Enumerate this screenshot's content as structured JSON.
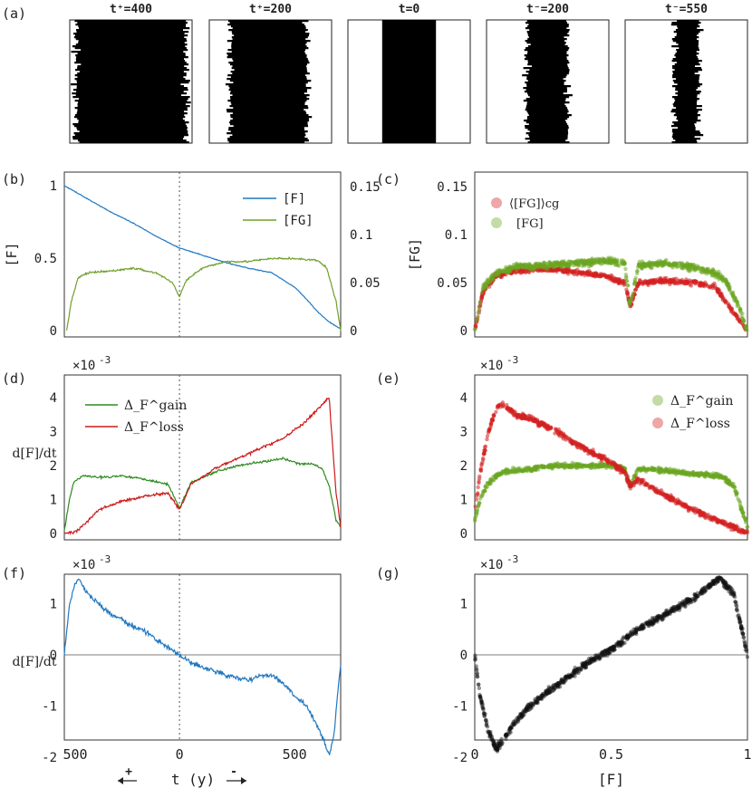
{
  "panel_labels": {
    "a": "(a)",
    "b": "(b)",
    "c": "(c)",
    "d": "(d)",
    "e": "(e)",
    "f": "(f)",
    "g": "(g)"
  },
  "snapshots": [
    {
      "title": "t⁺=400",
      "front_start": 0.05,
      "front_end": 0.95
    },
    {
      "title": "t⁺=200",
      "front_start": 0.17,
      "front_end": 0.8
    },
    {
      "title": "t=0",
      "front_start": 0.28,
      "front_end": 0.72
    },
    {
      "title": "t⁻=200",
      "front_start": 0.33,
      "front_end": 0.66
    },
    {
      "title": "t⁻=550",
      "front_start": 0.4,
      "front_end": 0.6
    }
  ],
  "multiplier": "×10",
  "multiplier_exp": "-3",
  "bottom_axis": {
    "left_tick": "500",
    "mid_tick": "0",
    "right_tick": "500",
    "label": "t (y)",
    "plus": "+",
    "minus": "-"
  },
  "x_label_right": "[F]",
  "colors": {
    "F": "#1f78c1",
    "FG": "#6fa02a",
    "gain": "#2e8b1f",
    "loss": "#cc1a1a",
    "scatter_red": "#d42020",
    "scatter_green": "#6aa620",
    "black": "#111111"
  },
  "chart_data": [
    {
      "panel": "b",
      "type": "line",
      "xlabel": "t (y)",
      "ylabel": "[F]",
      "y2label": "",
      "x_ticks": [
        "500",
        "0",
        "500"
      ],
      "ylim": [
        0,
        1
      ],
      "y2lim": [
        0,
        0.17
      ],
      "y_ticks": [
        "0",
        "0.5",
        "1"
      ],
      "y2_ticks": [
        "0",
        "0.05",
        "0.1",
        "0.15"
      ],
      "series": [
        {
          "name": "[F]",
          "axis": "left",
          "x": [
            -500,
            -400,
            -300,
            -200,
            -100,
            0,
            100,
            200,
            300,
            400,
            500,
            550,
            600,
            650,
            700
          ],
          "values": [
            1.0,
            0.91,
            0.82,
            0.74,
            0.65,
            0.57,
            0.52,
            0.47,
            0.43,
            0.4,
            0.3,
            0.22,
            0.13,
            0.06,
            0.01
          ]
        },
        {
          "name": "[FG]",
          "axis": "right",
          "x": [
            -490,
            -470,
            -440,
            -400,
            -300,
            -200,
            -100,
            -30,
            0,
            30,
            100,
            200,
            300,
            400,
            500,
            600,
            640,
            680,
            700
          ],
          "values": [
            0.0,
            0.03,
            0.055,
            0.06,
            0.062,
            0.065,
            0.06,
            0.05,
            0.035,
            0.053,
            0.065,
            0.072,
            0.072,
            0.075,
            0.075,
            0.073,
            0.065,
            0.03,
            0.0
          ]
        }
      ]
    },
    {
      "panel": "c",
      "type": "scatter",
      "xlabel": "[F]",
      "ylabel": "[FG]",
      "xlim": [
        0,
        1
      ],
      "ylim": [
        0,
        0.17
      ],
      "y_ticks": [
        "0",
        "0.05",
        "0.1",
        "0.15"
      ],
      "series": [
        {
          "name": "⟨[FG]⟩cg",
          "x": [
            0,
            0.03,
            0.08,
            0.15,
            0.25,
            0.35,
            0.45,
            0.5,
            0.55,
            0.57,
            0.6,
            0.7,
            0.8,
            0.88,
            0.92,
            0.96,
            1.0
          ],
          "values": [
            0,
            0.04,
            0.058,
            0.062,
            0.064,
            0.062,
            0.058,
            0.055,
            0.05,
            0.025,
            0.05,
            0.052,
            0.05,
            0.046,
            0.03,
            0.015,
            0
          ]
        },
        {
          "name": "[FG]",
          "x": [
            0,
            0.03,
            0.08,
            0.15,
            0.25,
            0.35,
            0.45,
            0.5,
            0.55,
            0.57,
            0.6,
            0.7,
            0.8,
            0.88,
            0.92,
            0.96,
            1.0
          ],
          "values": [
            0,
            0.045,
            0.06,
            0.066,
            0.068,
            0.07,
            0.072,
            0.072,
            0.07,
            0.025,
            0.068,
            0.07,
            0.066,
            0.06,
            0.052,
            0.03,
            0
          ]
        }
      ]
    },
    {
      "panel": "d",
      "type": "line",
      "xlabel": "t (y)",
      "ylabel": "d[F]/dt",
      "x_ticks": [
        "500",
        "0",
        "500"
      ],
      "ylim": [
        0,
        4.4
      ],
      "y_ticks": [
        "0",
        "1",
        "2",
        "3",
        "4"
      ],
      "series": [
        {
          "name": "Δ_F^gain",
          "x": [
            -500,
            -480,
            -460,
            -420,
            -350,
            -250,
            -150,
            -50,
            0,
            50,
            150,
            250,
            350,
            450,
            520,
            580,
            620,
            650,
            680,
            700
          ],
          "values": [
            0.1,
            0.9,
            1.5,
            1.7,
            1.65,
            1.7,
            1.6,
            1.45,
            0.75,
            1.5,
            1.8,
            2.0,
            2.1,
            2.2,
            2.05,
            2.05,
            1.9,
            1.4,
            0.4,
            0.2
          ]
        },
        {
          "name": "Δ_F^loss",
          "x": [
            -500,
            -450,
            -400,
            -350,
            -250,
            -150,
            -50,
            0,
            50,
            150,
            250,
            350,
            450,
            550,
            620,
            650,
            680,
            700
          ],
          "values": [
            0.0,
            0.05,
            0.35,
            0.7,
            0.95,
            1.1,
            1.2,
            0.7,
            1.45,
            1.9,
            2.2,
            2.5,
            2.8,
            3.3,
            3.8,
            4.0,
            1.2,
            0.2
          ]
        }
      ]
    },
    {
      "panel": "e",
      "type": "scatter",
      "xlabel": "[F]",
      "ylabel": "",
      "xlim": [
        0,
        1
      ],
      "ylim": [
        0,
        4.4
      ],
      "y_ticks": [
        "0",
        "1",
        "2",
        "3",
        "4"
      ],
      "series": [
        {
          "name": "Δ_F^gain",
          "x": [
            0,
            0.02,
            0.05,
            0.1,
            0.2,
            0.3,
            0.4,
            0.5,
            0.55,
            0.57,
            0.6,
            0.7,
            0.8,
            0.9,
            0.95,
            1.0
          ],
          "values": [
            0.4,
            1.0,
            1.5,
            1.8,
            1.9,
            2.0,
            2.0,
            2.0,
            1.9,
            1.4,
            1.9,
            1.85,
            1.75,
            1.7,
            1.4,
            0.2
          ]
        },
        {
          "name": "Δ_F^loss",
          "x": [
            0,
            0.02,
            0.05,
            0.08,
            0.1,
            0.15,
            0.2,
            0.3,
            0.4,
            0.5,
            0.55,
            0.57,
            0.6,
            0.7,
            0.8,
            0.9,
            1.0
          ],
          "values": [
            0.6,
            1.8,
            3.0,
            3.7,
            3.8,
            3.5,
            3.4,
            3.0,
            2.5,
            2.1,
            1.8,
            1.4,
            1.6,
            1.1,
            0.7,
            0.35,
            0.0
          ]
        }
      ]
    },
    {
      "panel": "f",
      "type": "line",
      "xlabel": "t (y)",
      "ylabel": "d[F]/dt",
      "x_ticks": [
        "500",
        "0",
        "500"
      ],
      "ylim": [
        -2.2,
        1.8
      ],
      "y_ticks": [
        "-2",
        "-1",
        "0",
        "1"
      ],
      "series": [
        {
          "name": "",
          "x": [
            -500,
            -480,
            -460,
            -440,
            -400,
            -350,
            -300,
            -250,
            -200,
            -150,
            -100,
            -50,
            0,
            50,
            100,
            150,
            200,
            250,
            300,
            350,
            400,
            450,
            500,
            550,
            600,
            630,
            650,
            670,
            690,
            700
          ],
          "values": [
            0.0,
            0.9,
            1.3,
            1.5,
            1.2,
            1.0,
            0.8,
            0.7,
            0.55,
            0.45,
            0.3,
            0.15,
            0.0,
            -0.15,
            -0.25,
            -0.3,
            -0.4,
            -0.45,
            -0.5,
            -0.4,
            -0.4,
            -0.55,
            -0.8,
            -1.0,
            -1.4,
            -1.7,
            -1.95,
            -1.6,
            -0.6,
            -0.2
          ]
        }
      ]
    },
    {
      "panel": "g",
      "type": "scatter",
      "xlabel": "[F]",
      "ylabel": "",
      "xlim": [
        0,
        1
      ],
      "ylim": [
        -2.2,
        1.8
      ],
      "y_ticks": [
        "-2",
        "-1",
        "0",
        "1"
      ],
      "x_ticks": [
        "0",
        "0.5",
        "1"
      ],
      "series": [
        {
          "name": "",
          "x": [
            0,
            0.02,
            0.05,
            0.08,
            0.1,
            0.15,
            0.2,
            0.3,
            0.4,
            0.5,
            0.55,
            0.6,
            0.7,
            0.8,
            0.85,
            0.9,
            0.95,
            1.0
          ],
          "values": [
            0.0,
            -0.8,
            -1.5,
            -1.85,
            -1.7,
            -1.3,
            -1.0,
            -0.6,
            -0.2,
            0.1,
            0.3,
            0.5,
            0.8,
            1.1,
            1.3,
            1.5,
            1.2,
            0.0
          ]
        }
      ]
    }
  ]
}
